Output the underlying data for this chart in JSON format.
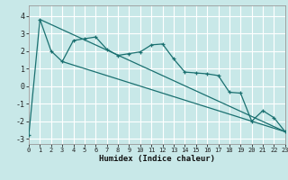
{
  "xlabel": "Humidex (Indice chaleur)",
  "bg_color": "#c8e8e8",
  "grid_color": "#ffffff",
  "line_color": "#1a7070",
  "xlim": [
    0,
    23
  ],
  "ylim": [
    -3.3,
    4.6
  ],
  "yticks": [
    -3,
    -2,
    -1,
    0,
    1,
    2,
    3,
    4
  ],
  "xticks": [
    0,
    1,
    2,
    3,
    4,
    5,
    6,
    7,
    8,
    9,
    10,
    11,
    12,
    13,
    14,
    15,
    16,
    17,
    18,
    19,
    20,
    21,
    22,
    23
  ],
  "series1_x": [
    0,
    1,
    2,
    3,
    4,
    5,
    6,
    7,
    8,
    9,
    10,
    11,
    12,
    13,
    14,
    15,
    16,
    17,
    18,
    19,
    20,
    21,
    22,
    23
  ],
  "series1_y": [
    -2.8,
    3.8,
    2.0,
    1.4,
    2.6,
    2.7,
    2.8,
    2.1,
    1.75,
    1.85,
    1.95,
    2.35,
    2.4,
    1.55,
    0.8,
    0.75,
    0.7,
    0.6,
    -0.35,
    -0.4,
    -2.0,
    -1.4,
    -1.8,
    -2.6
  ],
  "line1_x": [
    1,
    23
  ],
  "line1_y": [
    3.8,
    -2.6
  ],
  "line2_x": [
    3,
    23
  ],
  "line2_y": [
    1.4,
    -2.6
  ]
}
